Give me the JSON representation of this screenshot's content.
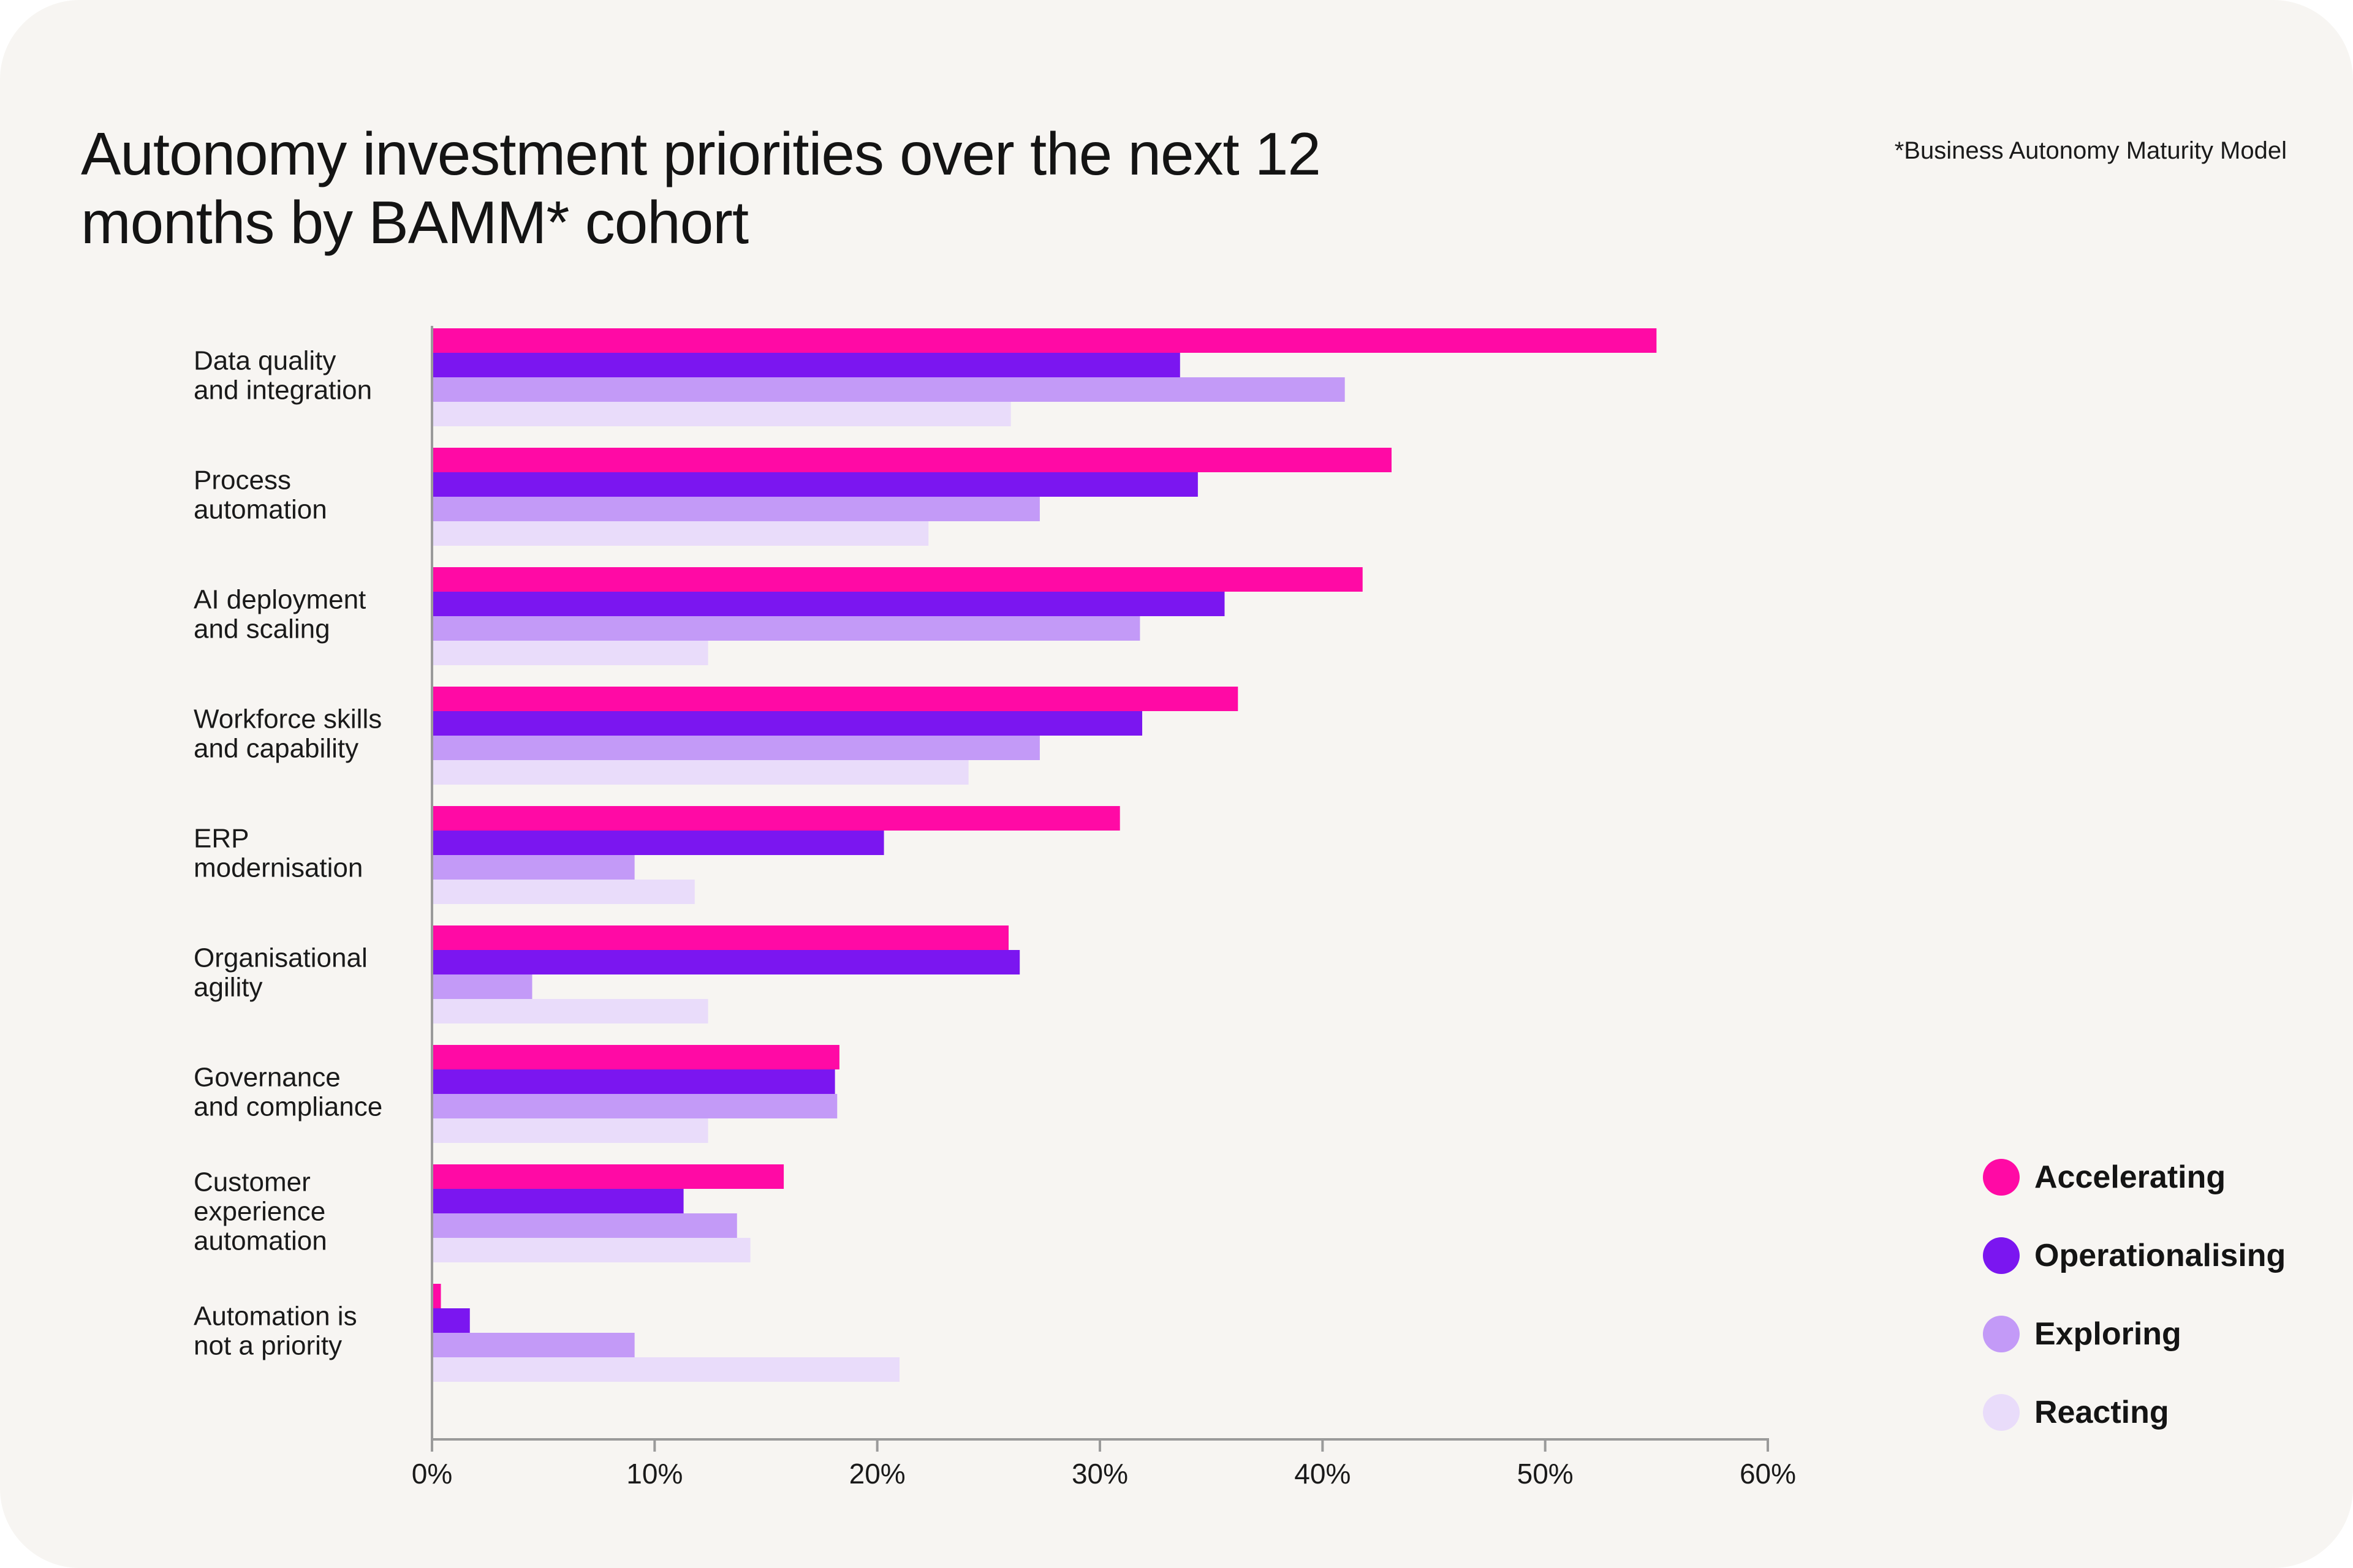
{
  "header": {
    "title": "Autonomy investment priorities over the next 12 months by BAMM* cohort",
    "footnote": "*Business Autonomy Maturity Model"
  },
  "colors": {
    "background": "#f7f5f2",
    "axis": "#9a9a9a"
  },
  "chart_data": {
    "type": "bar",
    "orientation": "horizontal",
    "title": "Autonomy investment priorities over the next 12 months by BAMM* cohort",
    "xlabel": "",
    "ylabel": "",
    "xlim": [
      0,
      60
    ],
    "xticks": [
      {
        "value": 0,
        "label": "0%"
      },
      {
        "value": 10,
        "label": "10%"
      },
      {
        "value": 20,
        "label": "20%"
      },
      {
        "value": 30,
        "label": "30%"
      },
      {
        "value": 40,
        "label": "40%"
      },
      {
        "value": 50,
        "label": "50%"
      },
      {
        "value": 60,
        "label": "60%"
      }
    ],
    "grid": false,
    "legend_position": "bottom-right",
    "categories": [
      [
        "Data quality",
        "and integration"
      ],
      [
        "Process",
        "automation"
      ],
      [
        "AI deployment",
        "and scaling"
      ],
      [
        "Workforce skills",
        "and capability"
      ],
      [
        "ERP",
        "modernisation"
      ],
      [
        "Organisational",
        "agility"
      ],
      [
        "Governance",
        "and compliance"
      ],
      [
        "Customer",
        "experience",
        "automation"
      ],
      [
        "Automation is",
        "not a priority"
      ]
    ],
    "series": [
      {
        "name": "Accelerating",
        "color": "#ff0aa5",
        "values": [
          55,
          43.1,
          41.8,
          36.2,
          30.9,
          25.9,
          18.3,
          15.8,
          0.4
        ]
      },
      {
        "name": "Operationalising",
        "color": "#7b16f0",
        "values": [
          33.6,
          34.4,
          35.6,
          31.9,
          20.3,
          26.4,
          18.1,
          11.3,
          1.7
        ]
      },
      {
        "name": "Exploring",
        "color": "#c39af7",
        "values": [
          41,
          27.3,
          31.8,
          27.3,
          9.1,
          4.5,
          18.2,
          13.7,
          9.1
        ]
      },
      {
        "name": "Reacting",
        "color": "#e9dcfa",
        "values": [
          26,
          22.3,
          12.4,
          24.1,
          11.8,
          12.4,
          12.4,
          14.3,
          21
        ]
      }
    ]
  }
}
